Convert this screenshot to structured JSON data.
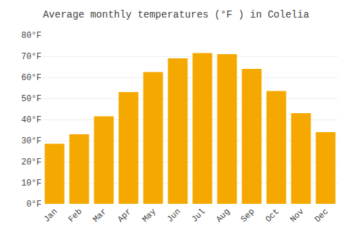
{
  "chart_data": {
    "type": "bar",
    "title": "Average monthly temperatures (°F ) in Colelia",
    "categories": [
      "Jan",
      "Feb",
      "Mar",
      "Apr",
      "May",
      "Jun",
      "Jul",
      "Aug",
      "Sep",
      "Oct",
      "Nov",
      "Dec"
    ],
    "values": [
      28.5,
      33.0,
      41.5,
      53.0,
      62.5,
      69.0,
      71.5,
      71.0,
      64.0,
      53.5,
      43.0,
      34.0
    ],
    "color": "#F5A800",
    "ylim": [
      0,
      80
    ],
    "yticks": [
      {
        "value": 0,
        "label": "0°F"
      },
      {
        "value": 10,
        "label": "10°F"
      },
      {
        "value": 20,
        "label": "20°F"
      },
      {
        "value": 30,
        "label": "30°F"
      },
      {
        "value": 40,
        "label": "40°F"
      },
      {
        "value": 50,
        "label": "50°F"
      },
      {
        "value": 60,
        "label": "60°F"
      },
      {
        "value": 70,
        "label": "70°F"
      },
      {
        "value": 80,
        "label": "80°F"
      }
    ],
    "grid": true
  }
}
